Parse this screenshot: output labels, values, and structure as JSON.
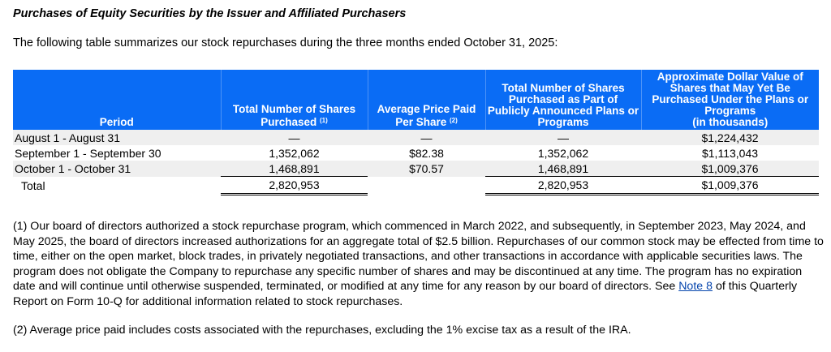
{
  "title": "Purchases of Equity Securities by the Issuer and Affiliated Purchasers",
  "intro": "The following table summarizes our stock repurchases during the three months ended October 31, 2025:",
  "table": {
    "headers": [
      {
        "text": "Period",
        "note": ""
      },
      {
        "text": "Total Number of Shares Purchased",
        "note": "(1)"
      },
      {
        "text": "Average Price Paid Per Share",
        "note": "(2)"
      },
      {
        "text": "Total Number of Shares Purchased as Part of Publicly Announced Plans or Programs",
        "note": ""
      },
      {
        "text": "Approximate Dollar Value of Shares that May Yet Be Purchased Under the Plans or Programs",
        "sub": "(in thousands)"
      }
    ],
    "rows": [
      [
        "August 1 - August 31",
        "—",
        "—",
        "—",
        "$1,224,432"
      ],
      [
        "September 1 - September 30",
        "1,352,062",
        "$82.38",
        "1,352,062",
        "$1,113,043"
      ],
      [
        "October 1 - October 31",
        "1,468,891",
        "$70.57",
        "1,468,891",
        "$1,009,376"
      ]
    ],
    "total": [
      "Total",
      "2,820,953",
      "",
      "2,820,953",
      "$1,009,376"
    ],
    "header_color": "#0a6cf5"
  },
  "notes": {
    "n1_before": "(1) Our board of directors authorized a stock repurchase program, which commenced in March 2022, and subsequently, in September 2023, May 2024, and May 2025, the board of directors increased authorizations for an aggregate total of $2.5 billion. Repurchases of our common stock may be effected from time to time, either on the open market, block trades, in privately negotiated transactions, and other transactions in accordance with applicable securities laws. The program does not obligate the Company to repurchase any specific number of shares and may be discontinued at any time. The program has no expiration date and will continue until otherwise suspended, terminated, or modified at any time for any reason by our board of directors. See ",
    "n1_link": "Note 8",
    "n1_after": " of this Quarterly Report on Form 10-Q for additional information related to stock repurchases.",
    "n2": "(2) Average price paid includes costs associated with the repurchases, excluding the 1% excise tax as a result of the IRA."
  }
}
